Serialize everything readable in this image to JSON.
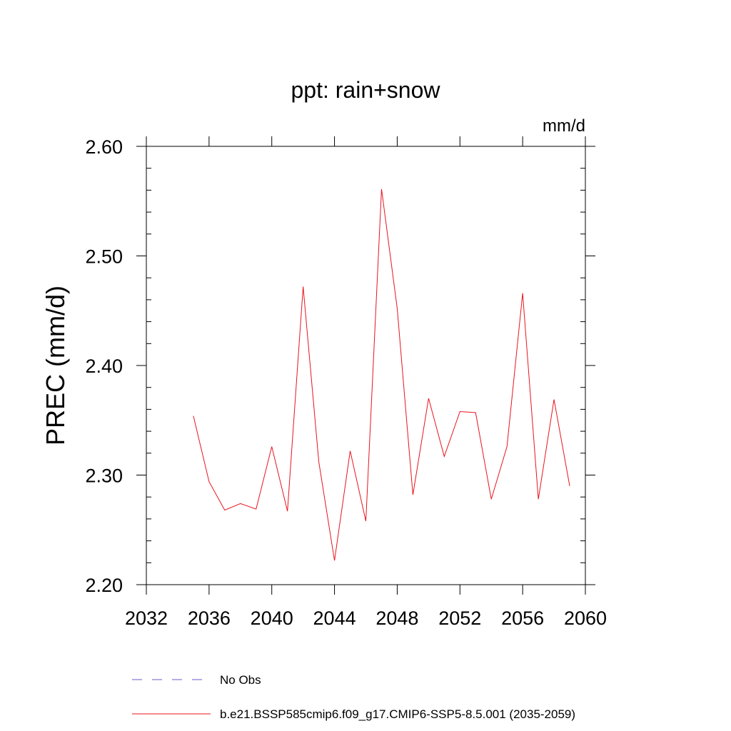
{
  "chart_data": {
    "type": "line",
    "title": "ppt: rain+snow",
    "units_label": "mm/d",
    "xlabel": "",
    "ylabel": "PREC  (mm/d)",
    "xlim": [
      2032,
      2060
    ],
    "ylim": [
      2.2,
      2.6
    ],
    "x_ticks": [
      2032,
      2036,
      2040,
      2044,
      2048,
      2052,
      2056,
      2060
    ],
    "x_tick_labels": [
      "2032",
      "2036",
      "2040",
      "2044",
      "2048",
      "2052",
      "2056",
      "2060"
    ],
    "y_ticks": [
      2.2,
      2.3,
      2.4,
      2.5,
      2.6
    ],
    "y_tick_labels": [
      "2.20",
      "2.30",
      "2.40",
      "2.50",
      "2.60"
    ],
    "series": [
      {
        "name": "b.e21.BSSP585cmip6.f09_g17.CMIP6-SSP5-8.5.001 (2035-2059)",
        "color": "#e8141e",
        "style": "solid",
        "x": [
          2035,
          2036,
          2037,
          2038,
          2039,
          2040,
          2041,
          2042,
          2043,
          2044,
          2045,
          2046,
          2047,
          2048,
          2049,
          2050,
          2051,
          2052,
          2053,
          2054,
          2055,
          2056,
          2057,
          2058,
          2059
        ],
        "y": [
          2.354,
          2.294,
          2.268,
          2.274,
          2.269,
          2.326,
          2.267,
          2.472,
          2.312,
          2.222,
          2.322,
          2.258,
          2.561,
          2.452,
          2.282,
          2.37,
          2.317,
          2.358,
          2.357,
          2.278,
          2.326,
          2.466,
          2.278,
          2.369,
          2.29
        ]
      }
    ],
    "legend": [
      {
        "label": "No Obs",
        "color": "#6a5acd",
        "style": "dashed"
      },
      {
        "label": "b.e21.BSSP585cmip6.f09_g17.CMIP6-SSP5-8.5.001 (2035-2059)",
        "color": "#e8141e",
        "style": "solid"
      }
    ],
    "grid": false,
    "legend_position": "bottom"
  }
}
